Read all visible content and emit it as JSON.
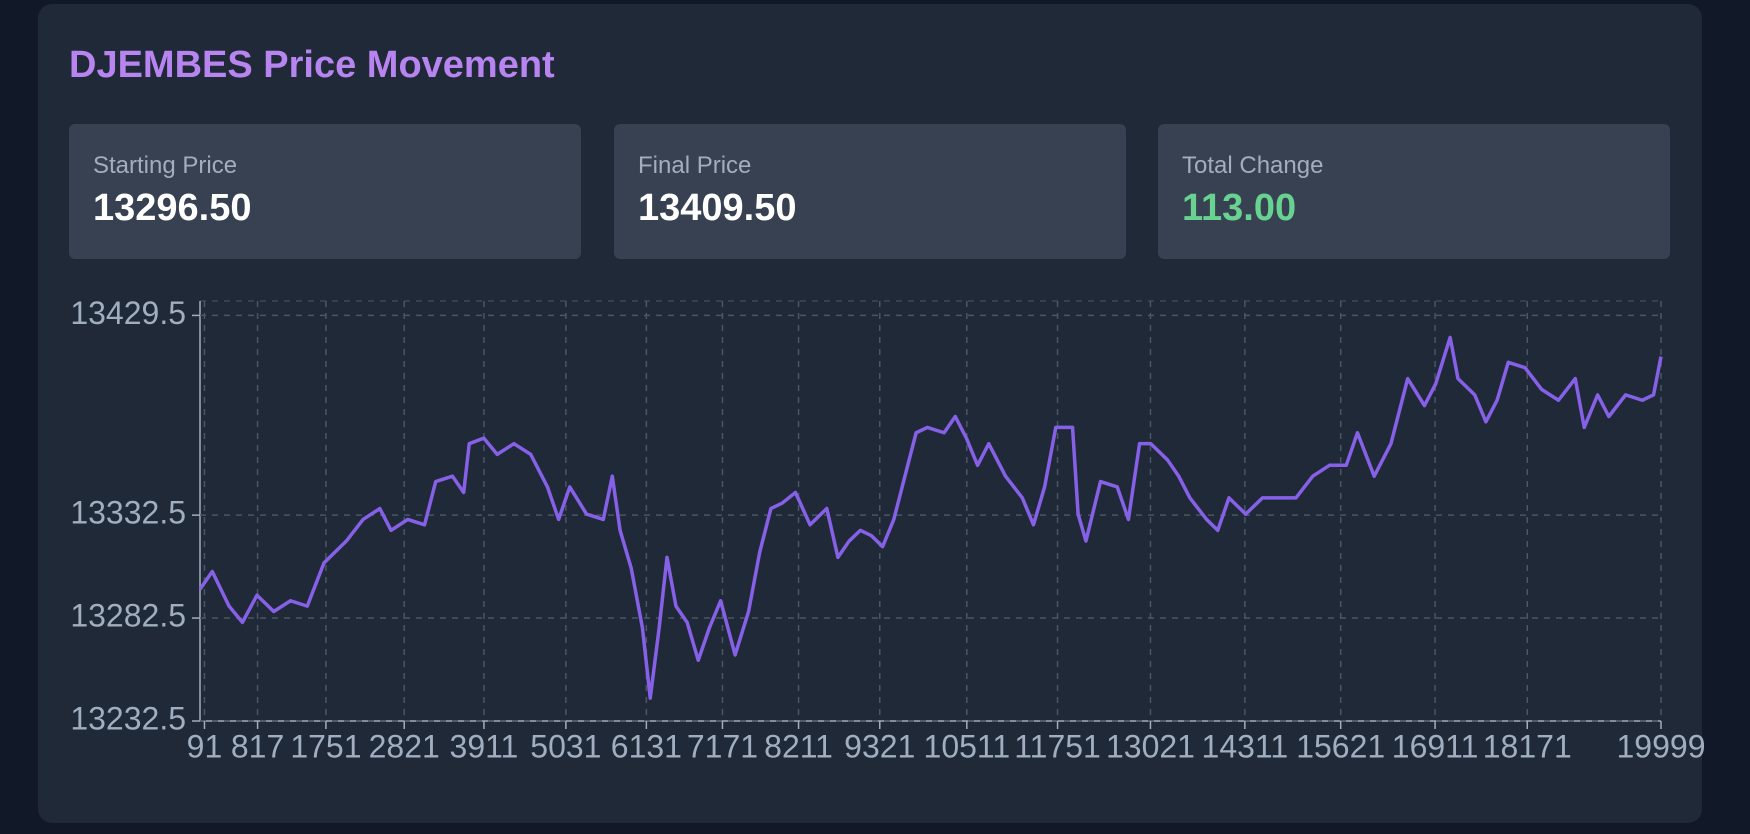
{
  "header": {
    "title": "DJEMBES Price Movement"
  },
  "stats": [
    {
      "label": "Starting Price",
      "value": "13296.50"
    },
    {
      "label": "Final Price",
      "value": "13409.50"
    },
    {
      "label": "Total Change",
      "value": "113.00"
    }
  ],
  "chart_data": {
    "type": "line",
    "color": "#8661e8",
    "grid": true,
    "x": [
      30,
      198,
      427,
      610,
      809,
      1038,
      1267,
      1496,
      1725,
      2030,
      2259,
      2488,
      2641,
      2870,
      3099,
      3252,
      3481,
      3634,
      3710,
      3909,
      4092,
      4321,
      4550,
      4779,
      4932,
      5084,
      5313,
      5542,
      5665,
      5772,
      5924,
      6077,
      6184,
      6306,
      6413,
      6535,
      6688,
      6840,
      6993,
      7146,
      7344,
      7528,
      7681,
      7833,
      7986,
      8169,
      8368,
      8597,
      8749,
      8902,
      9055,
      9208,
      9360,
      9513,
      9665,
      9818,
      9971,
      10200,
      10353,
      10505,
      10658,
      10811,
      11040,
      11269,
      11422,
      11574,
      11727,
      11956,
      12032,
      12139,
      12338,
      12567,
      12720,
      12872,
      13025,
      13254,
      13407,
      13559,
      13788,
      13941,
      14094,
      14323,
      14552,
      14781,
      15010,
      15239,
      15468,
      15697,
      15850,
      16079,
      16308,
      16537,
      16766,
      16919,
      17117,
      17224,
      17453,
      17606,
      17759,
      17911,
      18140,
      18369,
      18598,
      18827,
      18950,
      19133,
      19286,
      19515,
      19744,
      19897,
      19999
    ],
    "values": [
      13296.5,
      13305.1,
      13288.3,
      13280.4,
      13293.6,
      13285.7,
      13290.9,
      13288.3,
      13309.3,
      13319.9,
      13330.4,
      13335.7,
      13325.1,
      13330.4,
      13327.8,
      13348.8,
      13351.4,
      13343.5,
      13367.2,
      13369.9,
      13362.0,
      13367.2,
      13362.0,
      13346.2,
      13330.4,
      13346.2,
      13333.0,
      13330.4,
      13351.4,
      13325.1,
      13306.7,
      13277.8,
      13243.6,
      13277.8,
      13312.0,
      13288.3,
      13280.4,
      13262.0,
      13277.8,
      13290.9,
      13264.6,
      13285.7,
      13314.6,
      13335.7,
      13338.3,
      13343.5,
      13327.8,
      13335.7,
      13312.0,
      13319.9,
      13325.1,
      13322.5,
      13317.2,
      13330.4,
      13351.4,
      13372.5,
      13375.1,
      13372.5,
      13380.4,
      13369.9,
      13356.7,
      13367.2,
      13351.4,
      13340.9,
      13327.8,
      13346.2,
      13375.1,
      13375.1,
      13333.0,
      13319.9,
      13348.8,
      13346.2,
      13330.4,
      13367.2,
      13367.2,
      13359.3,
      13351.4,
      13340.9,
      13330.4,
      13325.1,
      13340.9,
      13333.0,
      13340.9,
      13340.9,
      13340.9,
      13351.4,
      13356.7,
      13356.7,
      13372.5,
      13351.4,
      13367.2,
      13398.8,
      13385.7,
      13396.2,
      13418.8,
      13398.8,
      13390.9,
      13377.8,
      13388.3,
      13406.7,
      13404.1,
      13393.5,
      13388.3,
      13398.8,
      13375.1,
      13390.9,
      13380.4,
      13390.9,
      13388.3,
      13390.9,
      13409.5
    ],
    "xlim": [
      30,
      19999
    ],
    "xticks": [
      91,
      817,
      1751,
      2821,
      3911,
      5031,
      6131,
      7171,
      8211,
      9321,
      10511,
      11751,
      13021,
      14311,
      15621,
      16911,
      18171,
      19999
    ],
    "ylim": [
      13232.5,
      13436.5
    ],
    "yticks": [
      13232.5,
      13282.5,
      13332.5,
      13429.5
    ]
  }
}
